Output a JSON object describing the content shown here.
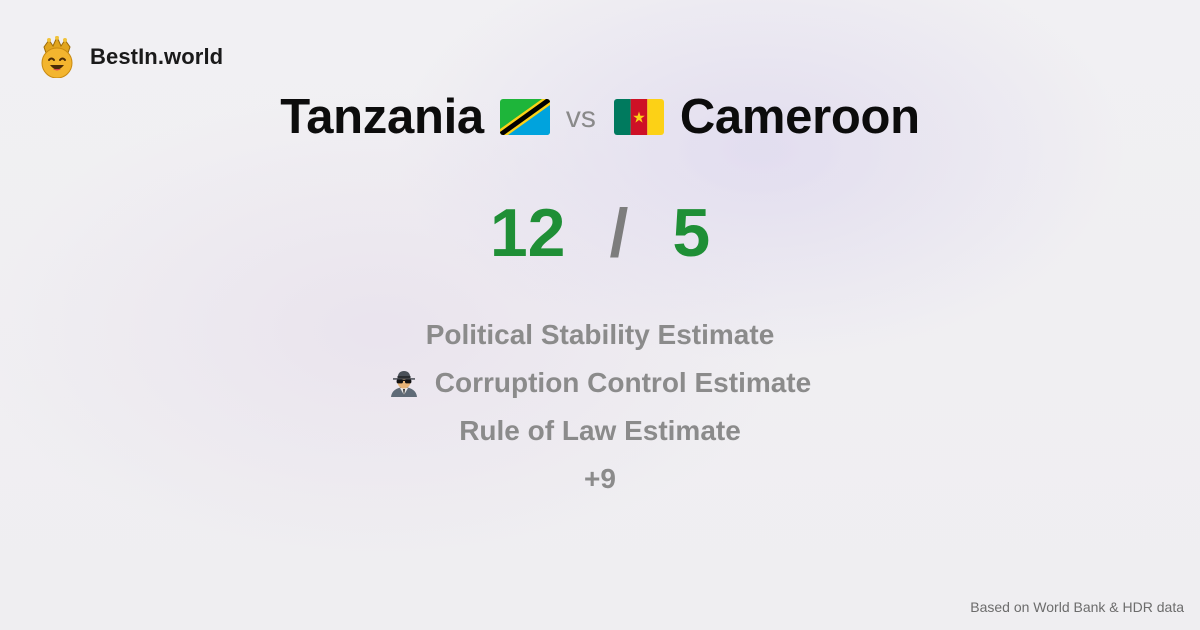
{
  "brand": {
    "name": "BestIn.world",
    "logo_icon": "crown-emoji-face-icon"
  },
  "comparison": {
    "country_a": "Tanzania",
    "country_b": "Cameroon",
    "vs_label": "vs",
    "flag_a_icon": "tanzania-flag-icon",
    "flag_b_icon": "cameroon-flag-icon"
  },
  "score": {
    "left": "12",
    "separator": "/",
    "right": "5",
    "color": "#1f8f36"
  },
  "features": [
    {
      "label": "Political Stability Estimate"
    },
    {
      "label": "Corruption Control Estimate",
      "icon": "spy-icon"
    },
    {
      "label": "Rule of Law Estimate"
    },
    {
      "label": "+9"
    }
  ],
  "footer": {
    "note": "Based on World Bank & HDR data"
  }
}
